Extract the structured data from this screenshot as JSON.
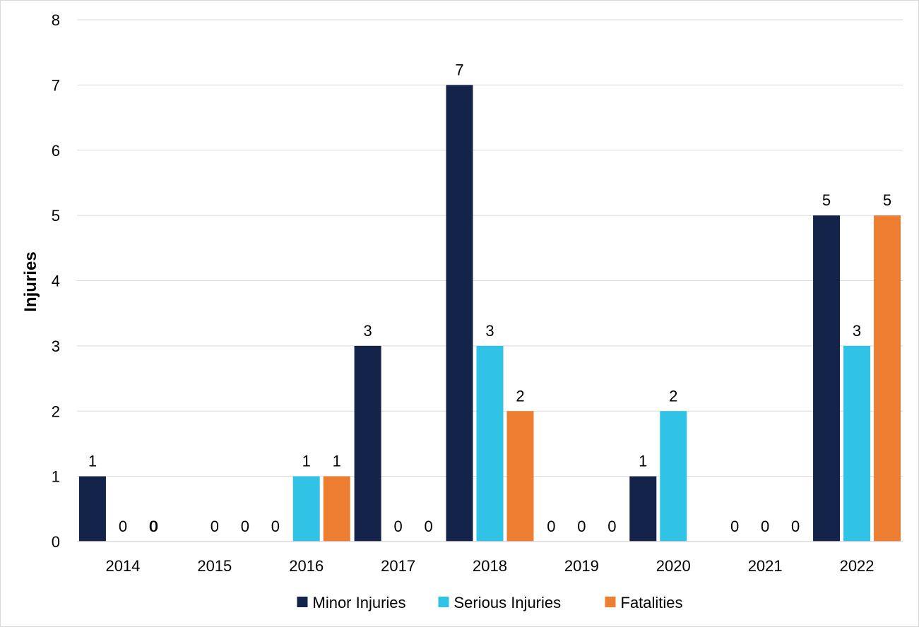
{
  "chart_data": {
    "type": "bar",
    "title": "",
    "xlabel": "",
    "ylabel": "Injuries",
    "ylim": [
      0,
      8
    ],
    "yticks": [
      0,
      1,
      2,
      3,
      4,
      5,
      6,
      7,
      8
    ],
    "grid": true,
    "legend_position": "bottom",
    "categories": [
      "2014",
      "2015",
      "2016",
      "2017",
      "2018",
      "2019",
      "2020",
      "2021",
      "2022"
    ],
    "series": [
      {
        "name": "Minor Injuries",
        "color": "#14234a",
        "values": [
          1,
          null,
          null,
          3,
          7,
          0,
          1,
          0,
          5
        ],
        "labels": [
          "1",
          "",
          "",
          "3",
          "7",
          "0",
          "1",
          "0",
          "5"
        ]
      },
      {
        "name": "Serious Injuries",
        "color": "#30c3e5",
        "values": [
          0,
          0,
          1,
          0,
          3,
          0,
          2,
          0,
          3
        ],
        "labels": [
          "0",
          "0",
          "1",
          "0",
          "3",
          "0",
          "2",
          "0",
          "3"
        ]
      },
      {
        "name": "Fatalities",
        "color": "#ed7d31",
        "values": [
          0,
          0,
          1,
          0,
          2,
          0,
          null,
          0,
          5
        ],
        "labels": [
          "0",
          "0",
          "1",
          "0",
          "2",
          "0",
          "",
          "0",
          "5"
        ]
      }
    ]
  },
  "extra_zero_labels": [
    {
      "category": "2015",
      "text": "0"
    },
    {
      "category": "2015",
      "text": "0"
    }
  ]
}
